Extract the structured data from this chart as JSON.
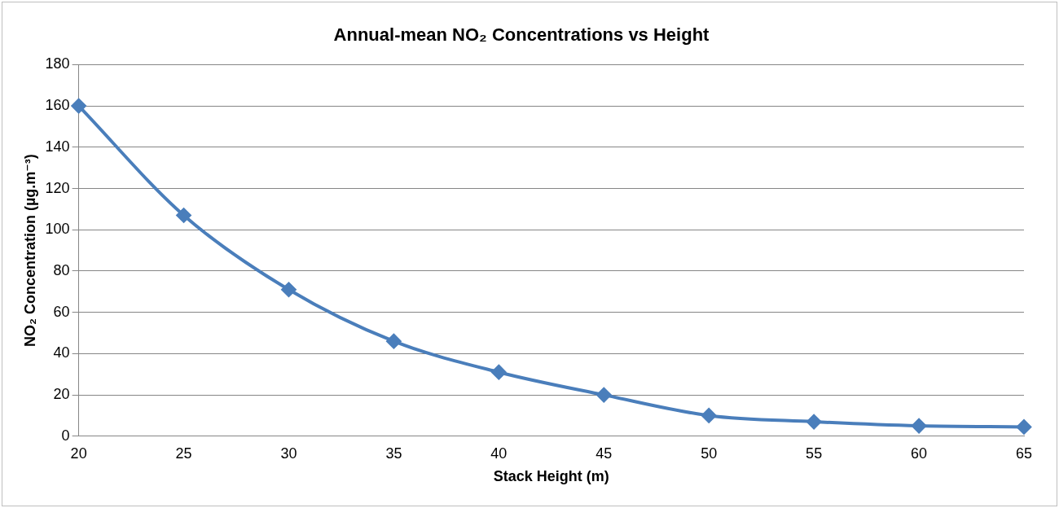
{
  "chart_data": {
    "type": "line",
    "title": "Annual-mean NO₂ Concentrations vs Height",
    "xlabel": "Stack Height (m)",
    "ylabel": "NO₂ Concentration (µg.m⁻³)",
    "categories": [
      "20",
      "25",
      "30",
      "35",
      "40",
      "45",
      "50",
      "55",
      "60",
      "65"
    ],
    "series": [
      {
        "color": "#4a7ebb",
        "values": [
          160,
          107,
          71,
          46,
          31,
          20,
          10,
          7,
          5,
          4.5
        ]
      }
    ],
    "ylim": [
      0,
      180
    ],
    "yticks": [
      0,
      20,
      40,
      60,
      80,
      100,
      120,
      140,
      160,
      180
    ],
    "grid": "y",
    "legend": false,
    "marker": "diamond",
    "line_style": "solid"
  }
}
